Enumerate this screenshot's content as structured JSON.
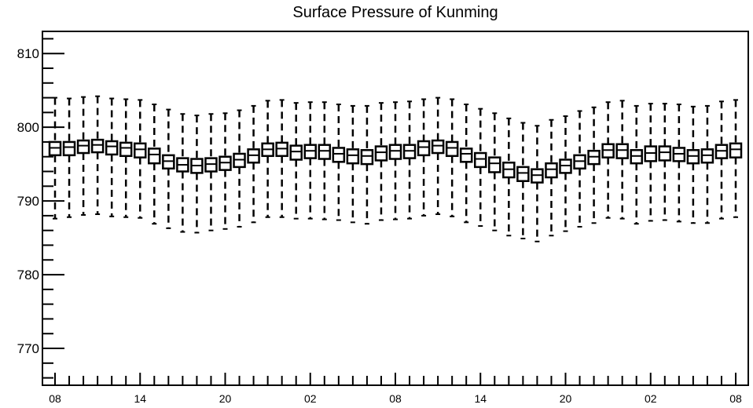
{
  "chart_data": {
    "type": "boxplot",
    "title": "Surface Pressure of Kunming",
    "xlabel": "",
    "ylabel": "",
    "ylim": [
      765,
      813
    ],
    "yticks": [
      770,
      780,
      790,
      800,
      810
    ],
    "grid": false,
    "n_points": 49,
    "x_tick_labels": [
      {
        "index": 0,
        "label": "08"
      },
      {
        "index": 6,
        "label": "14"
      },
      {
        "index": 12,
        "label": "20"
      },
      {
        "index": 18,
        "label": "02"
      },
      {
        "index": 24,
        "label": "08"
      },
      {
        "index": 30,
        "label": "14"
      },
      {
        "index": 36,
        "label": "20"
      },
      {
        "index": 42,
        "label": "02"
      },
      {
        "index": 48,
        "label": "08"
      }
    ],
    "median": [
      797.2,
      797.3,
      797.5,
      797.6,
      797.4,
      797.2,
      797.0,
      796.3,
      795.4,
      794.9,
      794.8,
      795.0,
      795.2,
      795.6,
      796.2,
      797.0,
      797.1,
      796.7,
      796.8,
      796.8,
      796.4,
      796.2,
      796.1,
      796.6,
      796.8,
      796.8,
      797.3,
      797.5,
      797.2,
      796.4,
      795.7,
      795.1,
      794.3,
      793.8,
      793.5,
      794.3,
      794.8,
      795.4,
      796.0,
      796.9,
      796.9,
      796.1,
      796.5,
      796.6,
      796.4,
      796.1,
      796.2,
      796.8,
      797.0
    ],
    "q1": [
      796.2,
      796.2,
      796.5,
      796.6,
      796.3,
      796.1,
      795.9,
      795.1,
      794.4,
      794.0,
      793.8,
      794.0,
      794.2,
      794.6,
      795.2,
      796.1,
      796.1,
      795.6,
      795.8,
      795.7,
      795.3,
      795.1,
      795.0,
      795.5,
      795.7,
      795.8,
      796.2,
      796.5,
      796.1,
      795.3,
      794.6,
      793.9,
      793.2,
      792.7,
      792.5,
      793.2,
      793.8,
      794.4,
      795.0,
      795.9,
      795.8,
      795.1,
      795.4,
      795.5,
      795.4,
      795.1,
      795.2,
      795.8,
      795.9
    ],
    "q3": [
      798.0,
      798.0,
      798.2,
      798.3,
      798.1,
      797.9,
      797.8,
      797.1,
      796.2,
      795.8,
      795.7,
      795.8,
      796.0,
      796.4,
      797.0,
      797.8,
      797.9,
      797.5,
      797.6,
      797.6,
      797.2,
      797.0,
      796.9,
      797.4,
      797.6,
      797.6,
      798.1,
      798.2,
      798.0,
      797.1,
      796.5,
      795.9,
      795.2,
      794.6,
      794.3,
      795.1,
      795.6,
      796.2,
      796.8,
      797.7,
      797.7,
      796.9,
      797.4,
      797.4,
      797.2,
      796.9,
      797.0,
      797.6,
      797.8
    ],
    "min": [
      787.6,
      787.8,
      788.1,
      788.2,
      787.9,
      787.8,
      787.7,
      786.9,
      786.3,
      785.8,
      785.7,
      786.0,
      786.2,
      786.5,
      787.1,
      787.8,
      787.8,
      787.6,
      787.6,
      787.5,
      787.4,
      787.1,
      786.9,
      787.4,
      787.5,
      787.6,
      788.0,
      788.2,
      787.9,
      787.1,
      786.6,
      786.0,
      785.3,
      784.9,
      784.5,
      785.3,
      785.9,
      786.5,
      787.0,
      787.7,
      787.6,
      786.9,
      787.3,
      787.4,
      787.2,
      787.0,
      787.0,
      787.6,
      787.8
    ],
    "max": [
      804.0,
      803.9,
      804.1,
      804.2,
      803.9,
      803.8,
      803.7,
      803.1,
      802.4,
      801.8,
      801.6,
      801.8,
      801.9,
      802.3,
      802.9,
      803.6,
      803.7,
      803.3,
      803.4,
      803.4,
      803.1,
      802.9,
      802.9,
      803.3,
      803.4,
      803.5,
      803.8,
      804.0,
      803.8,
      803.1,
      802.5,
      801.9,
      801.2,
      800.6,
      800.2,
      801.0,
      801.5,
      802.2,
      802.7,
      803.4,
      803.6,
      802.9,
      803.2,
      803.2,
      803.1,
      802.8,
      802.9,
      803.5,
      803.7
    ]
  }
}
